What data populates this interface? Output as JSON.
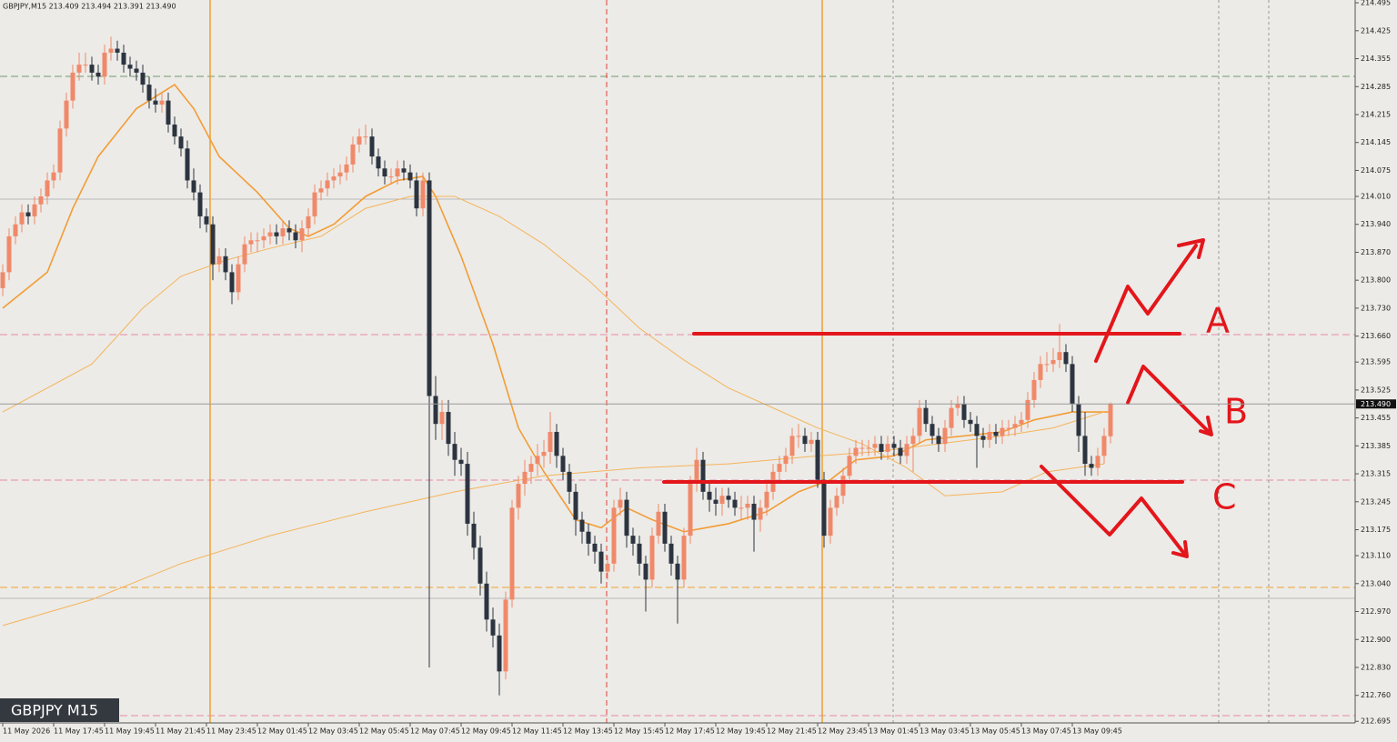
{
  "chart_data": {
    "type": "candlestick",
    "title": "GBPJPY,M15 213.409 213.494 213.391 213.490",
    "badge": "GBPJPY M15",
    "annotations": [
      "A",
      "B",
      "C"
    ],
    "up_color": "#f0896a",
    "down_color": "#2c3440",
    "xlim": [
      -0.43,
      212.43
    ],
    "ylim": [
      212.691,
      214.502
    ],
    "xticks": [
      {
        "value": 0,
        "label": "11 May 2026"
      },
      {
        "value": 8,
        "label": "11 May 17:45"
      },
      {
        "value": 16,
        "label": "11 May 19:45"
      },
      {
        "value": 24,
        "label": "11 May 21:45"
      },
      {
        "value": 32,
        "label": "11 May 23:45"
      },
      {
        "value": 40,
        "label": "12 May 01:45"
      },
      {
        "value": 48,
        "label": "12 May 03:45"
      },
      {
        "value": 56,
        "label": "12 May 05:45"
      },
      {
        "value": 64,
        "label": "12 May 07:45"
      },
      {
        "value": 72,
        "label": "12 May 09:45"
      },
      {
        "value": 80,
        "label": "12 May 11:45"
      },
      {
        "value": 88,
        "label": "12 May 13:45"
      },
      {
        "value": 96,
        "label": "12 May 15:45"
      },
      {
        "value": 104,
        "label": "12 May 17:45"
      },
      {
        "value": 112,
        "label": "12 May 19:45"
      },
      {
        "value": 120,
        "label": "12 May 21:45"
      },
      {
        "value": 128,
        "label": "12 May 23:45"
      },
      {
        "value": 136,
        "label": "13 May 01:45"
      },
      {
        "value": 144,
        "label": "13 May 03:45"
      },
      {
        "value": 152,
        "label": "13 May 05:45"
      },
      {
        "value": 160,
        "label": "13 May 07:45"
      },
      {
        "value": 168,
        "label": "13 May 09:45"
      }
    ],
    "yticks": [
      214.495,
      214.425,
      214.355,
      214.285,
      214.215,
      214.145,
      214.075,
      {
        "value": 214.01,
        "label": "214.010"
      },
      {
        "value": 213.94,
        "label": "213.940"
      },
      {
        "value": 213.87,
        "label": "213.870"
      },
      {
        "value": 213.8,
        "label": "213.800"
      },
      {
        "value": 213.73,
        "label": "213.730"
      },
      {
        "value": 213.66,
        "label": "213.660"
      },
      213.595,
      213.525,
      213.455,
      213.385,
      213.315,
      213.245,
      213.175,
      {
        "value": 213.11,
        "label": "213.110"
      },
      {
        "value": 213.04,
        "label": "213.040"
      },
      {
        "value": 212.97,
        "label": "212.970"
      },
      {
        "value": 212.9,
        "label": "212.900"
      },
      {
        "value": 212.83,
        "label": "212.830"
      },
      {
        "value": 212.76,
        "label": "212.760"
      },
      212.695
    ],
    "price_tag": {
      "value": 213.49,
      "label": "213.490"
    },
    "open": [
      213.78,
      213.82,
      213.91,
      213.94,
      213.97,
      213.96,
      213.99,
      214.01,
      214.05,
      214.07,
      214.18,
      214.25,
      214.32,
      214.34,
      214.34,
      214.32,
      214.31,
      214.37,
      214.38,
      214.37,
      214.34,
      214.33,
      214.32,
      214.29,
      214.25,
      214.24,
      214.25,
      214.19,
      214.16,
      214.13,
      214.05,
      214.02,
      213.96,
      213.94,
      213.84,
      213.86,
      213.82,
      213.77,
      213.84,
      213.89,
      213.9,
      213.9,
      213.91,
      213.92,
      213.91,
      213.93,
      213.92,
      213.9,
      213.93,
      213.96,
      214.02,
      214.03,
      214.05,
      214.06,
      214.07,
      214.09,
      214.14,
      214.16,
      214.16,
      214.11,
      214.08,
      214.06,
      214.06,
      214.08,
      214.07,
      214.05,
      213.98,
      214.05,
      213.51,
      213.44,
      213.47,
      213.39,
      213.35,
      213.34,
      213.19,
      213.13,
      213.04,
      212.95,
      212.91,
      212.82,
      213.0,
      213.23,
      213.29,
      213.32,
      213.34,
      213.36,
      213.37,
      213.42,
      213.36,
      213.32,
      213.27,
      213.2,
      213.17,
      213.14,
      213.12,
      213.07,
      213.09,
      213.23,
      213.25,
      213.16,
      213.14,
      213.09,
      213.05,
      213.16,
      213.22,
      213.14,
      213.09,
      213.05,
      213.16,
      213.29,
      213.35,
      213.27,
      213.25,
      213.24,
      213.26,
      213.25,
      213.23,
      213.23,
      213.24,
      213.2,
      213.23,
      213.27,
      213.32,
      213.34,
      213.36,
      213.41,
      213.41,
      213.39,
      213.4,
      213.3,
      213.16,
      213.23,
      213.26,
      213.31,
      213.36,
      213.38,
      213.38,
      213.38,
      213.39,
      213.37,
      213.39,
      213.38,
      213.36,
      213.39,
      213.41,
      213.48,
      213.44,
      213.41,
      213.39,
      213.43,
      213.48,
      213.49,
      213.45,
      213.44,
      213.41,
      213.4,
      213.42,
      213.41,
      213.43,
      213.43,
      213.44,
      213.45,
      213.5,
      213.55,
      213.59,
      213.59,
      213.6,
      213.62,
      213.59,
      213.49,
      213.41,
      213.34,
      213.33,
      213.36,
      213.409
    ],
    "high": [
      213.84,
      213.93,
      213.96,
      213.99,
      213.99,
      214.01,
      214.03,
      214.07,
      214.09,
      214.2,
      214.27,
      214.34,
      214.37,
      214.37,
      214.36,
      214.34,
      214.39,
      214.41,
      214.4,
      214.39,
      214.36,
      214.35,
      214.34,
      214.31,
      214.28,
      214.27,
      214.27,
      214.21,
      214.18,
      214.15,
      214.08,
      214.04,
      213.98,
      213.96,
      213.88,
      213.88,
      213.84,
      213.86,
      213.91,
      213.92,
      213.92,
      213.93,
      213.94,
      213.94,
      213.95,
      213.95,
      213.94,
      213.95,
      213.98,
      214.04,
      214.05,
      214.07,
      214.08,
      214.09,
      214.11,
      214.16,
      214.18,
      214.19,
      214.18,
      214.13,
      214.1,
      214.08,
      214.1,
      214.1,
      214.09,
      214.07,
      214.07,
      214.07,
      213.56,
      213.5,
      213.5,
      213.42,
      213.38,
      213.37,
      213.22,
      213.16,
      213.07,
      212.98,
      212.94,
      213.02,
      213.25,
      213.31,
      213.35,
      213.36,
      213.39,
      213.4,
      213.47,
      213.44,
      213.38,
      213.34,
      213.29,
      213.22,
      213.19,
      213.16,
      213.14,
      213.11,
      213.25,
      213.28,
      213.27,
      213.18,
      213.16,
      213.11,
      213.18,
      213.24,
      213.24,
      213.16,
      213.11,
      213.18,
      213.31,
      213.38,
      213.37,
      213.29,
      213.28,
      213.28,
      213.28,
      213.27,
      213.26,
      213.26,
      213.26,
      213.25,
      213.29,
      213.34,
      213.36,
      213.38,
      213.43,
      213.44,
      213.43,
      213.42,
      213.42,
      213.32,
      213.25,
      213.28,
      213.33,
      213.38,
      213.4,
      213.4,
      213.4,
      213.41,
      213.41,
      213.41,
      213.41,
      213.4,
      213.41,
      213.43,
      213.5,
      213.5,
      213.46,
      213.43,
      213.45,
      213.5,
      213.51,
      213.51,
      213.47,
      213.46,
      213.43,
      213.44,
      213.44,
      213.45,
      213.45,
      213.46,
      213.47,
      213.52,
      213.57,
      213.61,
      213.62,
      213.63,
      213.69,
      213.64,
      213.61,
      213.51,
      213.47,
      213.36,
      213.38,
      213.43,
      213.494
    ],
    "low": [
      213.76,
      213.8,
      213.89,
      213.92,
      213.94,
      213.94,
      213.97,
      213.99,
      214.03,
      214.05,
      214.16,
      214.23,
      214.3,
      214.32,
      214.3,
      214.29,
      214.29,
      214.35,
      214.35,
      214.32,
      214.31,
      214.3,
      214.27,
      214.23,
      214.22,
      214.22,
      214.17,
      214.14,
      214.11,
      214.03,
      214.0,
      213.93,
      213.92,
      213.8,
      213.82,
      213.8,
      213.74,
      213.75,
      213.82,
      213.87,
      213.87,
      213.88,
      213.89,
      213.89,
      213.89,
      213.9,
      213.88,
      213.87,
      213.91,
      213.94,
      214.0,
      214.01,
      214.03,
      214.04,
      214.05,
      214.07,
      214.12,
      214.14,
      214.09,
      214.06,
      214.04,
      214.04,
      214.04,
      214.05,
      214.03,
      213.96,
      213.96,
      212.83,
      213.4,
      213.4,
      213.36,
      213.31,
      213.31,
      213.16,
      213.1,
      213.01,
      212.92,
      212.88,
      212.76,
      212.8,
      212.98,
      213.2,
      213.26,
      213.29,
      213.31,
      213.33,
      213.34,
      213.33,
      213.3,
      213.24,
      213.16,
      213.14,
      213.11,
      213.09,
      213.04,
      213.05,
      213.07,
      213.21,
      213.13,
      213.11,
      213.06,
      212.97,
      213.03,
      213.14,
      213.12,
      213.06,
      212.94,
      213.03,
      213.14,
      213.27,
      213.25,
      213.22,
      213.21,
      213.21,
      213.23,
      213.21,
      213.2,
      213.2,
      213.12,
      213.17,
      213.21,
      213.25,
      213.3,
      213.32,
      213.34,
      213.38,
      213.37,
      213.37,
      213.28,
      213.13,
      213.14,
      213.21,
      213.24,
      213.29,
      213.34,
      213.36,
      213.36,
      213.36,
      213.35,
      213.35,
      213.36,
      213.34,
      213.34,
      213.32,
      213.39,
      213.42,
      213.39,
      213.37,
      213.37,
      213.41,
      213.46,
      213.43,
      213.42,
      213.33,
      213.38,
      213.38,
      213.39,
      213.39,
      213.41,
      213.41,
      213.42,
      213.43,
      213.48,
      213.53,
      213.57,
      213.57,
      213.58,
      213.57,
      213.47,
      213.37,
      213.31,
      213.31,
      213.31,
      213.34,
      213.391
    ],
    "close": [
      213.82,
      213.91,
      213.94,
      213.97,
      213.96,
      213.99,
      214.01,
      214.05,
      214.07,
      214.18,
      214.25,
      214.32,
      214.34,
      214.34,
      214.32,
      214.31,
      214.37,
      214.38,
      214.37,
      214.34,
      214.33,
      214.32,
      214.29,
      214.25,
      214.24,
      214.25,
      214.19,
      214.16,
      214.13,
      214.05,
      214.02,
      213.96,
      213.94,
      213.84,
      213.86,
      213.82,
      213.77,
      213.84,
      213.89,
      213.9,
      213.9,
      213.91,
      213.92,
      213.91,
      213.93,
      213.92,
      213.9,
      213.93,
      213.96,
      214.02,
      214.03,
      214.05,
      214.06,
      214.07,
      214.09,
      214.14,
      214.16,
      214.16,
      214.11,
      214.08,
      214.06,
      214.06,
      214.08,
      214.07,
      214.05,
      213.98,
      214.05,
      213.51,
      213.44,
      213.47,
      213.39,
      213.35,
      213.34,
      213.19,
      213.13,
      213.04,
      212.95,
      212.91,
      212.82,
      213.0,
      213.23,
      213.29,
      213.32,
      213.34,
      213.36,
      213.37,
      213.42,
      213.36,
      213.32,
      213.27,
      213.2,
      213.17,
      213.14,
      213.12,
      213.07,
      213.09,
      213.23,
      213.25,
      213.16,
      213.14,
      213.09,
      213.05,
      213.16,
      213.22,
      213.14,
      213.09,
      213.05,
      213.16,
      213.29,
      213.35,
      213.27,
      213.25,
      213.24,
      213.26,
      213.25,
      213.23,
      213.23,
      213.24,
      213.2,
      213.23,
      213.27,
      213.32,
      213.34,
      213.36,
      213.41,
      213.41,
      213.39,
      213.4,
      213.3,
      213.16,
      213.23,
      213.26,
      213.31,
      213.36,
      213.38,
      213.38,
      213.38,
      213.39,
      213.37,
      213.39,
      213.38,
      213.36,
      213.39,
      213.41,
      213.48,
      213.44,
      213.41,
      213.39,
      213.43,
      213.48,
      213.49,
      213.45,
      213.44,
      213.41,
      213.4,
      213.42,
      213.41,
      213.43,
      213.43,
      213.44,
      213.45,
      213.5,
      213.55,
      213.59,
      213.59,
      213.6,
      213.62,
      213.59,
      213.49,
      213.41,
      213.34,
      213.33,
      213.36,
      213.41,
      213.49
    ],
    "lines": [
      {
        "color": "#f39c35",
        "width": 1.6,
        "x": [
          0,
          7,
          11,
          15,
          21,
          27,
          30,
          34,
          40,
          45,
          48,
          52,
          57,
          62,
          66,
          68,
          72,
          77,
          81,
          85,
          90,
          94,
          98,
          102,
          107,
          114,
          120,
          125,
          130,
          134,
          140,
          145,
          151,
          157,
          162,
          168,
          174
        ],
        "values": [
          213.73,
          213.82,
          213.98,
          214.11,
          214.23,
          214.29,
          214.23,
          214.11,
          214.02,
          213.93,
          213.91,
          213.94,
          214.01,
          214.05,
          214.06,
          214.01,
          213.86,
          213.64,
          213.43,
          213.32,
          213.2,
          213.18,
          213.23,
          213.2,
          213.17,
          213.19,
          213.22,
          213.27,
          213.3,
          213.35,
          213.36,
          213.4,
          213.41,
          213.42,
          213.45,
          213.47,
          213.47
        ]
      },
      {
        "color": "#f5b45c",
        "width": 1,
        "x": [
          0,
          14,
          22,
          28,
          35,
          42,
          50,
          57,
          64,
          71,
          78,
          85,
          92,
          100,
          107,
          114,
          121,
          128,
          135,
          142,
          148,
          157,
          164,
          173
        ],
        "values": [
          213.47,
          213.59,
          213.73,
          213.81,
          213.85,
          213.88,
          213.91,
          213.98,
          214.01,
          214.01,
          213.96,
          213.89,
          213.8,
          213.68,
          213.6,
          213.53,
          213.48,
          213.43,
          213.39,
          213.33,
          213.26,
          213.27,
          213.32,
          213.34
        ]
      },
      {
        "color": "#f5b45c",
        "width": 1,
        "x": [
          0,
          14,
          28,
          42,
          57,
          71,
          85,
          100,
          114,
          128,
          137,
          157,
          165,
          173
        ],
        "values": [
          212.935,
          213.0,
          213.09,
          213.16,
          213.22,
          213.27,
          213.31,
          213.33,
          213.34,
          213.36,
          213.37,
          213.41,
          213.43,
          213.47
        ]
      }
    ]
  }
}
